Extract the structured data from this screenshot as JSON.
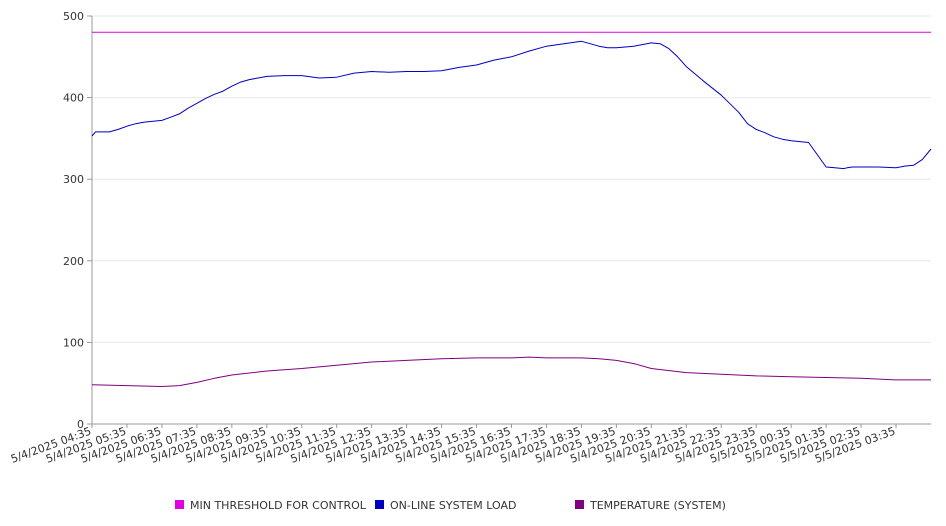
{
  "chart_data": {
    "type": "line",
    "title": "",
    "xlabel": "",
    "ylabel": "",
    "ylim": [
      0,
      500
    ],
    "yticks": [
      0,
      100,
      200,
      300,
      400,
      500
    ],
    "grid": true,
    "legend_position": "bottom",
    "x_categories": [
      "5/4/2025 04:35",
      "5/4/2025 05:35",
      "5/4/2025 06:35",
      "5/4/2025 07:35",
      "5/4/2025 08:35",
      "5/4/2025 09:35",
      "5/4/2025 10:35",
      "5/4/2025 11:35",
      "5/4/2025 12:35",
      "5/4/2025 13:35",
      "5/4/2025 14:35",
      "5/4/2025 15:35",
      "5/4/2025 16:35",
      "5/4/2025 17:35",
      "5/4/2025 18:35",
      "5/4/2025 19:35",
      "5/4/2025 20:35",
      "5/4/2025 21:35",
      "5/4/2025 22:35",
      "5/4/2025 23:35",
      "5/5/2025 00:35",
      "5/5/2025 01:35",
      "5/5/2025 02:35",
      "5/5/2025 03:35"
    ],
    "x_range_hours": [
      0,
      24
    ],
    "series": [
      {
        "name": "MIN THRESHOLD FOR CONTROL",
        "color": "#e000e0",
        "x": [
          0,
          24
        ],
        "values": [
          480,
          480
        ]
      },
      {
        "name": "ON-LINE SYSTEM LOAD",
        "color": "#0000c0",
        "x": [
          0,
          0.1,
          0.5,
          0.75,
          1,
          1.25,
          1.5,
          2,
          2.25,
          2.5,
          2.75,
          3,
          3.25,
          3.5,
          3.75,
          4,
          4.25,
          4.5,
          5,
          5.5,
          6,
          6.5,
          7,
          7.5,
          8,
          8.5,
          9,
          9.5,
          10,
          10.5,
          11,
          11.5,
          12,
          12.5,
          13,
          13.5,
          14,
          14.25,
          14.5,
          14.75,
          15,
          15.5,
          16,
          16.25,
          16.5,
          16.75,
          17,
          17.5,
          18,
          18.5,
          18.75,
          19,
          19.25,
          19.5,
          19.75,
          20,
          20.5,
          21,
          21.25,
          21.5,
          21.6,
          21.75,
          22,
          22.5,
          23,
          23.25,
          23.5,
          23.75,
          24
        ],
        "values": [
          353,
          358,
          358,
          361,
          365,
          368,
          370,
          372,
          376,
          380,
          387,
          393,
          399,
          404,
          408,
          414,
          419,
          422,
          426,
          427,
          427,
          424,
          425,
          430,
          432,
          431,
          432,
          432,
          433,
          437,
          440,
          446,
          450,
          457,
          463,
          466,
          469,
          466,
          463,
          461,
          461,
          463,
          467,
          466,
          460,
          450,
          438,
          420,
          403,
          382,
          368,
          361,
          357,
          352,
          349,
          347,
          345,
          315,
          314,
          313,
          314,
          315,
          315,
          315,
          314,
          316,
          317,
          324,
          337
        ]
      },
      {
        "name": "TEMPERATURE (SYSTEM)",
        "color": "#800080",
        "x": [
          0,
          1,
          2,
          2.5,
          3,
          3.5,
          4,
          5,
          6,
          7,
          8,
          9,
          10,
          11,
          12,
          12.5,
          13,
          14,
          14.5,
          15,
          15.5,
          16,
          17,
          18,
          19,
          20,
          21,
          22,
          23,
          24
        ],
        "values": [
          48,
          47,
          46,
          47,
          51,
          56,
          60,
          65,
          68,
          72,
          76,
          78,
          80,
          81,
          81,
          82,
          81,
          81,
          80,
          78,
          74,
          68,
          63,
          61,
          59,
          58,
          57,
          56,
          54,
          54
        ]
      }
    ]
  }
}
